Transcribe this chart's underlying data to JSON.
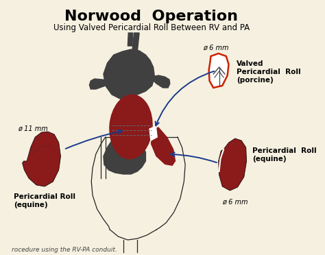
{
  "title": "Norwood  Operation",
  "subtitle": "Using Valved Pericardial Roll Between RV and PA",
  "background_color": "#f5f0e0",
  "title_fontsize": 16,
  "subtitle_fontsize": 8.5,
  "caption": "rocedure using the RV-PA conduit.",
  "labels": {
    "phi_6mm_top": "ø 6 mm",
    "phi_6mm_bottom": "ø 6 mm",
    "phi_11mm": "ø 11 mm",
    "valved_line1": "Valved",
    "valved_line2": "Pericardial  Roll",
    "valved_line3": "(porcine)",
    "pericardial_right_line1": "Pericardial  Roll",
    "pericardial_right_line2": "(equine)",
    "pericardial_left_line1": "Pericardial Roll",
    "pericardial_left_line2": "(equine)"
  },
  "dark_red": "#8B1a1a",
  "outline_red": "#CC2200",
  "dark_gray": "#404040",
  "blue_arrow": "#1a3a8a",
  "line_color": "#222222"
}
